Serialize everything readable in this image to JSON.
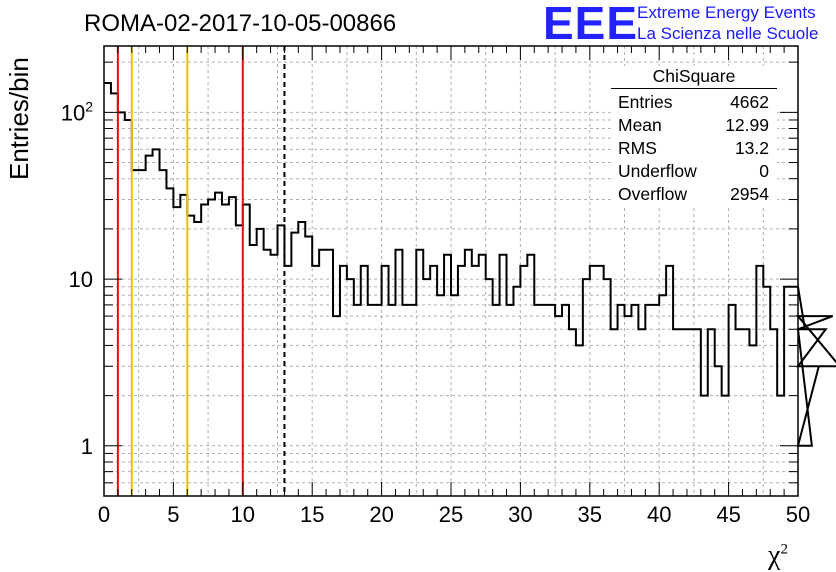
{
  "header": {
    "title": "ROMA-02-2017-10-05-00866",
    "logo_mark": "EEE",
    "logo_line1": "Extreme Energy Events",
    "logo_line2": "La Scienza nelle Scuole"
  },
  "stats": {
    "title": "ChiSquare",
    "rows": [
      {
        "label": "Entries",
        "value": "4662"
      },
      {
        "label": "Mean",
        "value": "12.99"
      },
      {
        "label": "RMS",
        "value": "13.2"
      },
      {
        "label": "Underflow",
        "value": "0"
      },
      {
        "label": "Overflow",
        "value": "2954"
      }
    ]
  },
  "chart_data": {
    "type": "histogram",
    "xlabel": "χ²",
    "ylabel": "Entries/bin",
    "xlim": [
      0,
      50
    ],
    "ylim": [
      0.5,
      250
    ],
    "yscale": "log",
    "grid": true,
    "bin_width": 0.5,
    "x_ticks": [
      "0",
      "5",
      "10",
      "15",
      "20",
      "25",
      "30",
      "35",
      "40",
      "45",
      "50"
    ],
    "y_ticks": [
      {
        "value": 1,
        "label": "1"
      },
      {
        "value": 10,
        "label": "10"
      },
      {
        "value": 100,
        "label": "10²"
      }
    ],
    "values": [
      150,
      130,
      100,
      90,
      45,
      45,
      55,
      60,
      45,
      35,
      27,
      32,
      24,
      22,
      28,
      30,
      33,
      28,
      31,
      21,
      28,
      16,
      20,
      15,
      14,
      21,
      12,
      19,
      22,
      18,
      12,
      15,
      15,
      6,
      12,
      10,
      7,
      12,
      7,
      7,
      12,
      7,
      15,
      7,
      7,
      15,
      10,
      12,
      8,
      14,
      8,
      12,
      15,
      12,
      14,
      10,
      7,
      14,
      7,
      9,
      12,
      14,
      7,
      7,
      7,
      6,
      7,
      5,
      4,
      10,
      12,
      12,
      10,
      5,
      7,
      6,
      7,
      5,
      7,
      7,
      8,
      12,
      5,
      5,
      5,
      5,
      2,
      5,
      3,
      2,
      7,
      5,
      5,
      4,
      12,
      9,
      5,
      2,
      9,
      9,
      9,
      5,
      1,
      3,
      5,
      6,
      3,
      3
    ],
    "vlines": [
      {
        "x": 1,
        "color": "#dd1111",
        "style": "solid"
      },
      {
        "x": 2,
        "color": "#f0c000",
        "style": "solid"
      },
      {
        "x": 6,
        "color": "#f0c000",
        "style": "solid"
      },
      {
        "x": 10,
        "color": "#dd1111",
        "style": "solid"
      },
      {
        "x": 13,
        "color": "#000000",
        "style": "dashed"
      }
    ]
  }
}
